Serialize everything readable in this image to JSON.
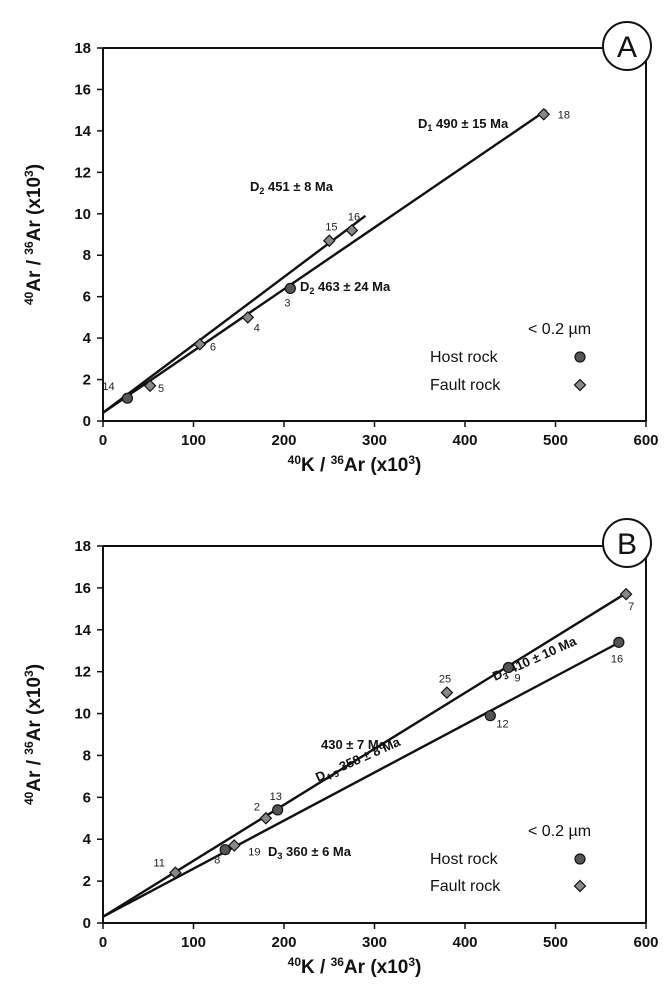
{
  "chart_data": [
    {
      "type": "scatter",
      "panel": "A",
      "xlabel": {
        "a": "40",
        "b": "K / ",
        "c": "36",
        "d": "Ar (x10",
        "e": "3",
        "f": ")"
      },
      "ylabel": {
        "a": "40",
        "b": "Ar / ",
        "c": "36",
        "d": "Ar (x10",
        "e": "3",
        "f": ")"
      },
      "xlim": [
        0,
        600
      ],
      "ylim": [
        0,
        18
      ],
      "xticks": [
        "0",
        "100",
        "200",
        "300",
        "400",
        "500",
        "600"
      ],
      "yticks": [
        "0",
        "2",
        "4",
        "6",
        "8",
        "10",
        "12",
        "14",
        "16",
        "18"
      ],
      "legend": {
        "title": "< 0.2 µm",
        "host": "Host rock",
        "fault": "Fault rock",
        "position": "bottom-right"
      },
      "points": [
        {
          "label": "14",
          "x": 27,
          "y": 1.1,
          "kind": "host"
        },
        {
          "label": "5",
          "x": 52,
          "y": 1.7,
          "kind": "fault"
        },
        {
          "label": "6",
          "x": 107,
          "y": 3.7,
          "kind": "fault"
        },
        {
          "label": "4",
          "x": 160,
          "y": 5.0,
          "kind": "fault"
        },
        {
          "label": "3",
          "x": 207,
          "y": 6.4,
          "kind": "host"
        },
        {
          "label": "15",
          "x": 250,
          "y": 8.7,
          "kind": "fault"
        },
        {
          "label": "16",
          "x": 275,
          "y": 9.2,
          "kind": "fault"
        },
        {
          "label": "18",
          "x": 487,
          "y": 14.8,
          "kind": "fault"
        }
      ],
      "lines": [
        {
          "label": {
            "main": "D",
            "sub": "1",
            "rest": " 490 ± 15 Ma"
          },
          "x0": 0,
          "y0": 0.4,
          "x1": 290,
          "y1": 9.9
        },
        {
          "label": {
            "main": "D",
            "sub": "2",
            "rest": " 451 ± 8 Ma"
          },
          "x0": 0,
          "y0": 0.4,
          "x1": 490,
          "y1": 15.0
        },
        {
          "label": {
            "main": "D",
            "sub": "2",
            "rest": " 463 ± 24 Ma"
          },
          "x0": 0,
          "y0": 0.4,
          "x1": 0,
          "y1": 0.4
        }
      ]
    },
    {
      "type": "scatter",
      "panel": "B",
      "xlabel": {
        "a": "40",
        "b": "K / ",
        "c": "36",
        "d": "Ar (x10",
        "e": "3",
        "f": ")"
      },
      "ylabel": {
        "a": "40",
        "b": "Ar / ",
        "c": "36",
        "d": "Ar (x10",
        "e": "3",
        "f": ")"
      },
      "xlim": [
        0,
        600
      ],
      "ylim": [
        0,
        18
      ],
      "xticks": [
        "0",
        "100",
        "200",
        "300",
        "400",
        "500",
        "600"
      ],
      "yticks": [
        "0",
        "2",
        "4",
        "6",
        "8",
        "10",
        "12",
        "14",
        "16",
        "18"
      ],
      "legend": {
        "title": "< 0.2 µm",
        "host": "Host rock",
        "fault": "Fault rock",
        "position": "bottom-right"
      },
      "points": [
        {
          "label": "11",
          "x": 80,
          "y": 2.4,
          "kind": "fault"
        },
        {
          "label": "8",
          "x": 135,
          "y": 3.5,
          "kind": "host"
        },
        {
          "label": "19",
          "x": 145,
          "y": 3.7,
          "kind": "fault"
        },
        {
          "label": "2",
          "x": 180,
          "y": 5.0,
          "kind": "fault"
        },
        {
          "label": "13",
          "x": 193,
          "y": 5.4,
          "kind": "host"
        },
        {
          "label": "25",
          "x": 380,
          "y": 11.0,
          "kind": "fault"
        },
        {
          "label": "12",
          "x": 428,
          "y": 9.9,
          "kind": "host"
        },
        {
          "label": "9",
          "x": 448,
          "y": 12.2,
          "kind": "host"
        },
        {
          "label": "7",
          "x": 578,
          "y": 15.7,
          "kind": "fault"
        },
        {
          "label": "16",
          "x": 570,
          "y": 13.4,
          "kind": "host"
        }
      ],
      "lines": [
        {
          "label": {
            "main": "D",
            "sub": "3",
            "rest": " 410 ± 10 Ma"
          },
          "x0": 0,
          "y0": 0.3,
          "x1": 580,
          "y1": 15.8
        },
        {
          "label": {
            "main": "D",
            "sub": "4-5",
            "rest": " 358 ± 8 Ma"
          },
          "x0": 0,
          "y0": 0.3,
          "x1": 575,
          "y1": 13.5
        },
        {
          "label": {
            "main": "",
            "sub": "",
            "rest": "430 ± 7 Ma"
          },
          "x0": 0,
          "y0": 0.3,
          "x1": 0,
          "y1": 0.3
        },
        {
          "label": {
            "main": "D",
            "sub": "3",
            "rest": " 360 ± 6 Ma"
          },
          "x0": 0,
          "y0": 0.3,
          "x1": 0,
          "y1": 0.3
        }
      ]
    }
  ]
}
